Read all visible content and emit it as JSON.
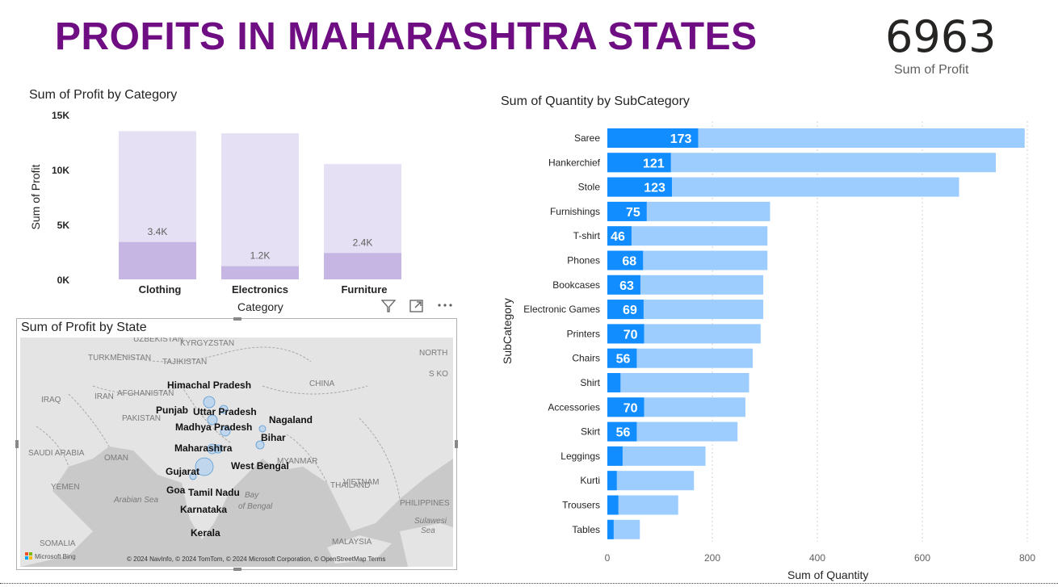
{
  "header": {
    "title": "PROFITS IN MAHARASHTRA STATES"
  },
  "kpi": {
    "value": "6963",
    "label": "Sum of Profit"
  },
  "colors": {
    "title": "#6f0e82",
    "bar_light": "#e6e0f5",
    "bar_dark": "#c5b6e4",
    "hbar_dark": "#118dff",
    "hbar_light": "#9dcdff",
    "map_land": "#e4e4e4",
    "map_sea": "#c9c9c9"
  },
  "category_chart": {
    "title": "Sum of Profit by Category",
    "chart_data": {
      "type": "bar",
      "title": "Sum of Profit by Category",
      "xlabel": "Category",
      "ylabel": "Sum of Profit",
      "categories": [
        "Clothing",
        "Electronics",
        "Furniture"
      ],
      "series": [
        {
          "values": [
            13500,
            13300,
            10500
          ]
        },
        {
          "values": [
            3400,
            1200,
            2400
          ]
        }
      ],
      "data_labels": [
        "3.4K",
        "1.2K",
        "2.4K"
      ],
      "y_ticks": [
        "15K",
        "10K",
        "5K",
        "0K"
      ],
      "ylim": [
        0,
        15000
      ]
    }
  },
  "map": {
    "title": "Sum of Profit by State",
    "states": [
      "Himachal Pradesh",
      "Punjab",
      "Uttar Pradesh",
      "Madhya Pradesh",
      "Nagaland",
      "Bihar",
      "Maharashtra",
      "Gujarat",
      "West Bengal",
      "Goa",
      "Tamil Nadu",
      "Karnataka",
      "Kerala"
    ],
    "base_labels": [
      "UZBEKISTAN",
      "KYRGYZSTAN",
      "TURKMENISTAN",
      "TAJIKISTAN",
      "NORTH",
      "S KO",
      "IRAQ",
      "IRAN",
      "AFGHANISTAN",
      "PAKISTAN",
      "CHINA",
      "SAUDI ARABIA",
      "OMAN",
      "YEMEN",
      "MYANMAR",
      "THAILAND",
      "VIETNAM",
      "PHILIPPINES",
      "SOMALIA",
      "MALAYSIA",
      "Arabian Sea",
      "Bay",
      "of Bengal",
      "Sulawesi",
      "Sea"
    ],
    "attribution": "© 2024 NavInfo, © 2024 TomTom, © 2024 Microsoft Corporation, © OpenStreetMap  Terms",
    "logo": "Microsoft Bing",
    "tools": {
      "filter": "filter-icon",
      "focus": "focus-mode-icon",
      "more": "more-options-icon"
    }
  },
  "subcategory_chart": {
    "title": "Sum of Quantity by SubCategory",
    "chart_data": {
      "type": "bar",
      "orientation": "horizontal",
      "title": "Sum of Quantity by SubCategory",
      "xlabel": "Sum of Quantity",
      "ylabel": "SubCategory",
      "categories": [
        "Saree",
        "Hankerchief",
        "Stole",
        "Furnishings",
        "T-shirt",
        "Phones",
        "Bookcases",
        "Electronic Games",
        "Printers",
        "Chairs",
        "Shirt",
        "Accessories",
        "Skirt",
        "Leggings",
        "Kurti",
        "Trousers",
        "Tables"
      ],
      "series": [
        {
          "values": [
            795,
            740,
            670,
            310,
            305,
            305,
            297,
            297,
            292,
            277,
            270,
            263,
            248,
            187,
            165,
            135,
            62
          ]
        },
        {
          "values": [
            173,
            121,
            123,
            75,
            46,
            68,
            63,
            69,
            70,
            56,
            25,
            70,
            56,
            29,
            18,
            21,
            12
          ]
        }
      ],
      "data_labels": [
        "173",
        "121",
        "123",
        "75",
        "46",
        "68",
        "63",
        "69",
        "70",
        "56",
        "",
        "70",
        "56",
        "",
        "",
        "",
        ""
      ],
      "x_ticks": [
        "0",
        "200",
        "400",
        "600",
        "800"
      ],
      "xlim": [
        0,
        800
      ]
    }
  }
}
